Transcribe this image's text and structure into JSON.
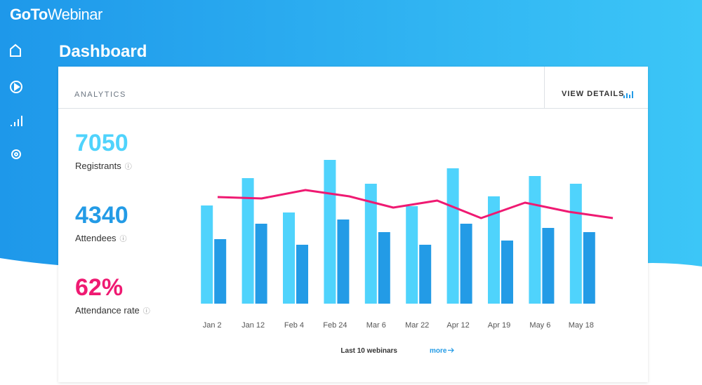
{
  "header": {
    "logo_bold": "GoTo",
    "logo_light": "Webinar",
    "title": "Dashboard"
  },
  "card": {
    "section": "ANALYTICS",
    "action": "VIEW DETAILS"
  },
  "stats": [
    {
      "value": "7050",
      "label": "Registrants",
      "color": "#4fd3fc"
    },
    {
      "value": "4340",
      "label": "Attendees",
      "color": "#239be6"
    },
    {
      "value": "62%",
      "label": "Attendance rate",
      "color": "#ef1a72"
    }
  ],
  "chart_data": {
    "type": "bar",
    "categories": [
      "Jan 2",
      "Jan 12",
      "Feb 4",
      "Feb 24",
      "Mar 6",
      "Mar 22",
      "Apr 12",
      "Apr 19",
      "May 6",
      "May 18"
    ],
    "series": [
      {
        "color": "#4fd3fc",
        "values": [
          140,
          179,
          130,
          205,
          171,
          139,
          193,
          153,
          182,
          171
        ]
      },
      {
        "color": "#239be6",
        "values": [
          92,
          114,
          84,
          120,
          102,
          84,
          114,
          90,
          108,
          102
        ]
      },
      {
        "type": "line",
        "color": "#ef1a72",
        "values": [
          152,
          150,
          162,
          153,
          137,
          147,
          122,
          144,
          131,
          122
        ]
      }
    ],
    "ylim": [
      0,
      220
    ],
    "caption": "Last 10 webinars",
    "link": "more"
  }
}
